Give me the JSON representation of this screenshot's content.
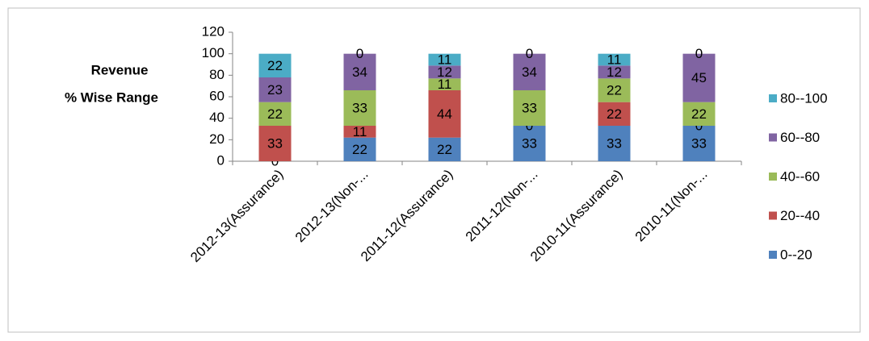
{
  "chart_data": {
    "type": "stacked_bar",
    "ylabel": [
      "Revenue",
      "% Wise Range"
    ],
    "categories": [
      "2012-13(Assurance)",
      "2012-13(Non-...",
      "2011-12(Assurance)",
      "2011-12(Non-...",
      "2010-11(Assurance)",
      "2010-11(Non-..."
    ],
    "series": [
      {
        "name": "0--20",
        "color": "#4f81bd",
        "values": [
          0,
          22,
          22,
          33,
          33,
          33
        ]
      },
      {
        "name": "20--40",
        "color": "#c0504d",
        "values": [
          33,
          11,
          44,
          0,
          22,
          0
        ]
      },
      {
        "name": "40--60",
        "color": "#9bbb59",
        "values": [
          22,
          33,
          11,
          33,
          22,
          22
        ]
      },
      {
        "name": "60--80",
        "color": "#8064a2",
        "values": [
          23,
          34,
          12,
          34,
          12,
          45
        ]
      },
      {
        "name": "80--100",
        "color": "#4bacc6",
        "values": [
          22,
          0,
          11,
          0,
          11,
          0
        ]
      }
    ],
    "ylim": [
      0,
      120
    ],
    "yticks": [
      0,
      20,
      40,
      60,
      80,
      100,
      120
    ],
    "legend": "right"
  }
}
